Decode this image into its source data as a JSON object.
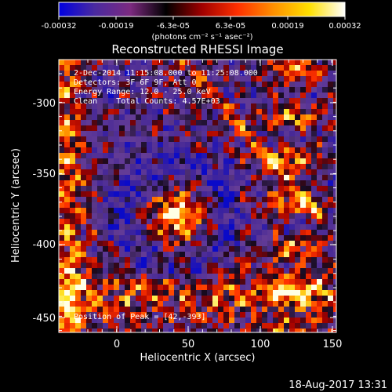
{
  "colorbar": {
    "ticks": [
      "-0.00032",
      "-0.00019",
      "-6.3e-05",
      "6.3e-05",
      "0.00019",
      "0.00032"
    ],
    "unit_label": "(photons cm⁻² s⁻¹ asec⁻²)",
    "colors": [
      "#0000e0",
      "#4a2aa0",
      "#7c2a80",
      "#000000",
      "#a00000",
      "#ff3000",
      "#ff9000",
      "#ffe000",
      "#ffffff"
    ]
  },
  "plot": {
    "title": "Reconstructed RHESSI Image",
    "x_label": "Heliocentric X (arcsec)",
    "y_label": "Heliocentric Y (arcsec)",
    "x_ticks": [
      "0",
      "50",
      "100",
      "150"
    ],
    "y_ticks": [
      "-300",
      "-350",
      "-400",
      "-450"
    ],
    "x_range": [
      -40,
      152
    ],
    "y_range": [
      -470,
      -275
    ]
  },
  "annotations": {
    "line1": "2-Dec-2014 11:15:08.000 to 11:25:08.000",
    "line2": "Detectors: 3F 6F 9F, Att 0",
    "line3": "Energy Range: 12.0 - 25.0 keV",
    "line4": "Clean    Total Counts: 4.57E+03",
    "peak": "Position of Peak = [42,-393]"
  },
  "footer": {
    "timestamp": "18-Aug-2017 13:31"
  }
}
